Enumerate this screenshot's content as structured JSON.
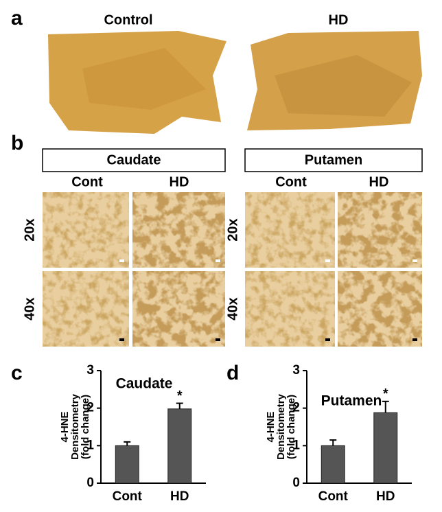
{
  "panel_labels": [
    "a",
    "b",
    "c",
    "d"
  ],
  "panel_a": {
    "columns": [
      "Control",
      "HD"
    ]
  },
  "panel_b": {
    "regions": [
      {
        "name": "Caudate",
        "columns": [
          "Cont",
          "HD"
        ]
      },
      {
        "name": "Putamen",
        "columns": [
          "Cont",
          "HD"
        ]
      }
    ],
    "rows": [
      "20x",
      "40x"
    ]
  },
  "chart_data": [
    {
      "type": "bar",
      "title": "Caudate",
      "ylabel": [
        "4-HNE",
        "Densitometry",
        "(fold change)"
      ],
      "categories": [
        "Cont",
        "HD"
      ],
      "values": [
        1.0,
        1.98
      ],
      "errors": [
        0.1,
        0.15
      ],
      "significance": [
        null,
        "*"
      ],
      "color": "#555555",
      "ylim": [
        0,
        3
      ],
      "yticks": [
        0,
        1,
        2,
        3
      ]
    },
    {
      "type": "bar",
      "title": "Putamen",
      "ylabel": [
        "4-HNE",
        "Densitometry",
        "(fold change)"
      ],
      "categories": [
        "Cont",
        "HD"
      ],
      "values": [
        1.0,
        1.88
      ],
      "errors": [
        0.15,
        0.3
      ],
      "significance": [
        null,
        "*"
      ],
      "color": "#555555",
      "ylim": [
        0,
        3
      ],
      "yticks": [
        0,
        1,
        2,
        3
      ]
    }
  ]
}
